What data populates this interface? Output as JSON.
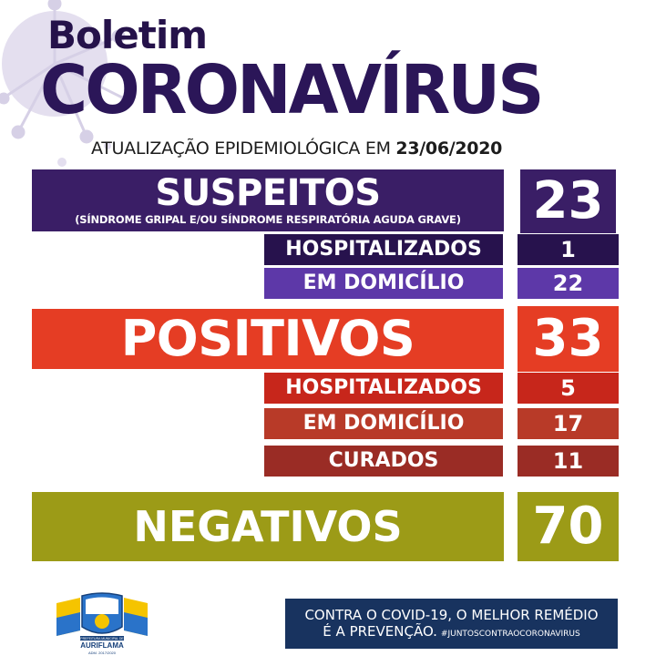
{
  "header": {
    "title_small": "Boletim",
    "title_big": "CORONAVÍRUS",
    "update_prefix": "ATUALIZAÇÃO EPIDEMIOLÓGICA EM ",
    "update_date": "23/06/2020"
  },
  "suspeitos": {
    "label": "SUSPEITOS",
    "sublabel": "(SÍNDROME GRIPAL E/OU SÍNDROME RESPIRATÓRIA AGUDA GRAVE)",
    "value": "23",
    "rows": [
      {
        "label": "HOSPITALIZADOS",
        "value": "1"
      },
      {
        "label": "EM DOMICÍLIO",
        "value": "22"
      }
    ]
  },
  "positivos": {
    "label": "POSITIVOS",
    "value": "33",
    "rows": [
      {
        "label": "HOSPITALIZADOS",
        "value": "5"
      },
      {
        "label": "EM DOMICÍLIO",
        "value": "17"
      },
      {
        "label": "CURADOS",
        "value": "11"
      }
    ]
  },
  "negativos": {
    "label": "NEGATIVOS",
    "value": "70"
  },
  "footer": {
    "logo_line1": "PREFEITURA MUNICIPAL DE",
    "logo_name": "AURIFLAMA",
    "logo_line3": "ADM. 2017/2020",
    "slogan_line1": "CONTRA O COVID-19, O MELHOR REMÉDIO",
    "slogan_line2": "É A PREVENÇÃO.",
    "hashtag": "#JUNTOSCONTRAOCORONAVIRUS"
  },
  "colors": {
    "purple_dark": "#3a1e66",
    "purple_row1": "#27124d",
    "purple_row2": "#5d38a8",
    "red": "#e53d24",
    "red_row1": "#c7261b",
    "red_row2": "#b83a28",
    "red_row3": "#9a2c25",
    "olive": "#9c9b17",
    "navy": "#18335f"
  }
}
